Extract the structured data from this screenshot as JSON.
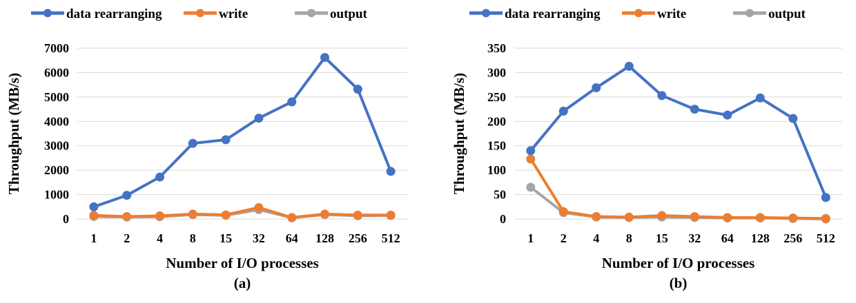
{
  "chart_data": [
    {
      "type": "line",
      "caption": "(a)",
      "xlabel": "Number of I/O processes",
      "ylabel": "Throughput  (MB/s)",
      "categories": [
        "1",
        "2",
        "4",
        "8",
        "15",
        "32",
        "64",
        "128",
        "256",
        "512"
      ],
      "ylim": [
        0,
        7000
      ],
      "yticks": [
        0,
        1000,
        2000,
        3000,
        4000,
        5000,
        6000,
        7000
      ],
      "grid": true,
      "legend_position": "top",
      "series": [
        {
          "name": "data rearranging",
          "color": "#4472C4",
          "values": [
            500,
            970,
            1720,
            3100,
            3250,
            4130,
            4800,
            6620,
            5320,
            1950
          ]
        },
        {
          "name": "write",
          "color": "#ED7D31",
          "values": [
            150,
            100,
            130,
            200,
            170,
            470,
            60,
            200,
            160,
            160
          ]
        },
        {
          "name": "output",
          "color": "#A5A5A5",
          "values": [
            100,
            80,
            90,
            180,
            150,
            380,
            50,
            180,
            130,
            140
          ]
        }
      ]
    },
    {
      "type": "line",
      "caption": "(b)",
      "xlabel": "Number of I/O processes",
      "ylabel": "Throughput  (MB/s)",
      "categories": [
        "1",
        "2",
        "4",
        "8",
        "15",
        "32",
        "64",
        "128",
        "256",
        "512"
      ],
      "ylim": [
        0,
        350
      ],
      "yticks": [
        0,
        50,
        100,
        150,
        200,
        250,
        300,
        350
      ],
      "grid": true,
      "legend_position": "top",
      "series": [
        {
          "name": "data rearranging",
          "color": "#4472C4",
          "values": [
            140,
            221,
            269,
            313,
            253,
            225,
            213,
            248,
            206,
            44
          ]
        },
        {
          "name": "write",
          "color": "#ED7D31",
          "values": [
            123,
            15,
            5,
            4,
            7,
            5,
            3,
            3,
            2,
            1
          ]
        },
        {
          "name": "output",
          "color": "#A5A5A5",
          "values": [
            65,
            13,
            4,
            3,
            4,
            3,
            2,
            2,
            1,
            0
          ]
        }
      ]
    }
  ]
}
